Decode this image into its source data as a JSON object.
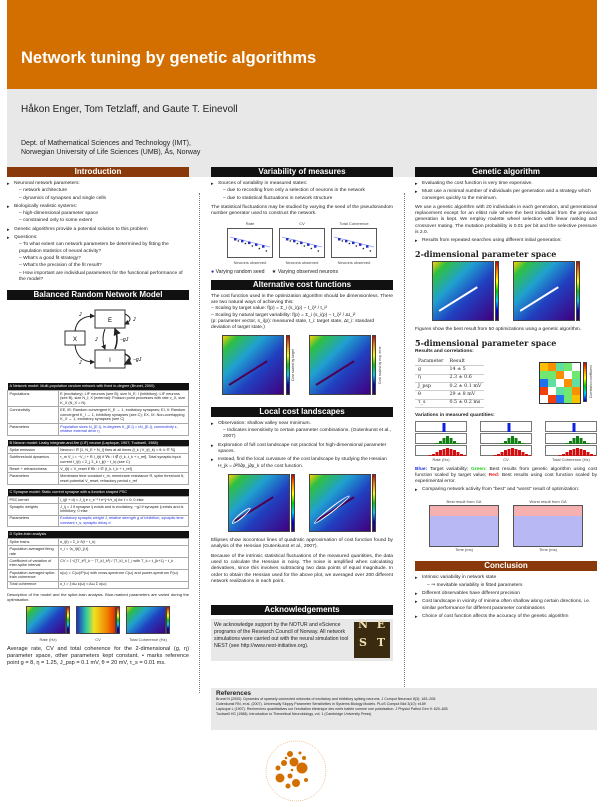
{
  "header": {
    "title": "Network tuning by genetic algorithms",
    "authors": "Håkon Enger, Tom Tetzlaff, and Gaute T. Einevoll",
    "affiliation_1": "Dept. of Mathematical Sciences and Technology (IMT),",
    "affiliation_2": "Norwegian University of Life Sciences (UMB), Ås, Norway"
  },
  "intro": {
    "title": "Introduction",
    "items": [
      {
        "t": "Neuronal network parameters:",
        "sub": [
          "network architecture",
          "dynamics of synapses and single cells"
        ]
      },
      {
        "t": "Biologically realistic systems:",
        "sub": [
          "high-dimensional parameter space",
          "constrained only to some extent"
        ]
      },
      {
        "t": "Genetic algorithms provide a potential solution to this problem",
        "sub": []
      },
      {
        "t": "Questions:",
        "sub": [
          "To what extent can network parameters be determined by fitting the population statistics of neural activity?",
          "What's a good fit strategy?",
          "What's the precision of the fit result?",
          "How important are individual parameters for the functional performance of the model?"
        ]
      }
    ]
  },
  "brn": {
    "title": "Balanced Random Network Model",
    "nodes": [
      "E",
      "X",
      "I"
    ],
    "edges": [
      "J",
      "J",
      "J",
      "−gJ",
      "J",
      "−gJ"
    ],
    "tables": [
      {
        "head": "A   Network model: Multi-population random network with fixed in-degree (Brunel, 2000)",
        "rows": [
          [
            "Populations",
            "E (excitatory): LIF neurons (see B), size N_E; I (inhibitory): LIF neurons (see B), size N_I; X (external): Poisson point processes with rate ν_X, size K_X (N_X = N)"
          ],
          [
            "Connectivity",
            "EE, IE: Random convergent K_E → 1, excitatory synapses; EI, II: Random convergent K_I → 1, inhibitory synapses (see C); EX, IX: Non-overlapping K_X → 1, excitatory synapses (see C)"
          ],
          [
            "Parameters",
            "Population sizes N_{E,I}, in-degrees K_{E,I} = εN_{E,I}, connectivity ε, relative external drive η"
          ]
        ]
      },
      {
        "head": "B   Neuron model: Leaky integrate-and-fire (LIF) neuron (Lapicque, 1907; Tuckwell, 1988)",
        "rows": [
          [
            "Spike emission",
            "Neuron i ∈ [1, N_E + N_I] fires at all times {t_k | V_i(t_k) = θ, k ∈ ℕ}"
          ],
          [
            "Subthreshold dynamics",
            "τ_m V̇_i = −V_i + R I_i(t)  if ∀k : t ∉ (t_k, t_k + τ_ref]. Total synaptic input current I_i(t) = Σ_j Σ_k i_ij(t − t_k) (see C)"
          ],
          [
            "Reset + refractoriness",
            "V_i(t) = V_reset  if ∀k : t ∈ (t_k, t_k + τ_ref]"
          ],
          [
            "Parameters",
            "Membrane time constant τ_m, membrane resistance R, spike threshold θ, reset potential V_reset, refractory period τ_ref"
          ]
        ]
      },
      {
        "head": "C   Synapse model: Static current synapse with α-function shaped PSC",
        "rows": [
          [
            "PSC kernel",
            "i_ij(t + d) = J_ij e τ_s⁻¹ t e^{−t/τ_s} for t > 0; 0 else"
          ],
          [
            "Synaptic weights",
            "J_ij = J if synapse ij exists and is excitatory; −gJ if synapse ij exists and is inhibitory; 0 else"
          ],
          [
            "Parameters",
            "Excitatory synaptic weight J, relative strength g of inhibition, synaptic time constant τ_s, synaptic delay d"
          ]
        ]
      },
      {
        "head": "D   Spike-train analysis",
        "rows": [
          [
            "Spike trains",
            "s_i(t) = Σ_k δ(t − t_k)"
          ],
          [
            "Population averaged firing rate",
            "ν_i = ⟨s_i(t)⟩_{i,t}"
          ],
          [
            "Coefficient of variation of inter-spike interval",
            "CV = ⟨ √(⟨T_k²⟩_k − ⟨T_k⟩_k²) / ⟨T_k⟩_k ⟩_i  with T_k = t_{k+1} − t_k"
          ],
          [
            "Population averaged spike-train coherence",
            "κ(ω) = C(ω)/P(ω) with cross-spectrum C(ω) and power-spectrum P(ω)"
          ],
          [
            "Total coherence",
            "κ_t = ∫ dω κ(ω) ≈ Δω Σ κ(ω)"
          ]
        ]
      }
    ],
    "caption": "Description of the model and the spike-train analysis. Blue-marked parameters are varied during the optimisation.",
    "plot_labels": [
      "Rate (Hz)",
      "CV",
      "Total Coherence (Hz)"
    ],
    "bottom_text": "Average rate, CV and total coherence for the 2-dimensional (g, η) parameter space, other parameters kept constant. • marks reference point g = 8, η = 1.25, J_psp = 0.1 mV, θ = 20 mV, τ_s = 0.01 ms."
  },
  "variability": {
    "title": "Variability of measures",
    "items": [
      {
        "t": "Sources of variability in measured states:",
        "sub": [
          "due to recording from only a selection of neurons in the network",
          "due to statistical fluctuations in network structure"
        ]
      }
    ],
    "para": "The statistical fluctuations may be studied by varying the seed of the pseudorandom number generator used to construct the network.",
    "plots": [
      "Rate",
      "CV",
      "Total Coherence"
    ],
    "xlabel": "Neurons observed",
    "legend_seed": "Varying random seed",
    "legend_neurons": "Varying observed neurons"
  },
  "altcost": {
    "title": "Alternative cost functions",
    "para": "The cost function used in the optimization algorithm should be dimensionless. There are two natural ways of achieving this:",
    "items": [
      "Scaling by target value: f(p) = Σ_i (s_i(p) − t_i)² / t_i²",
      "Scaling by natural target variability: f(p) = Σ_i (s_i(p) − t_i)² / Δt_i²"
    ],
    "note": "(p: parameter vector, s_i(p): measured state, t_i: target state, Δt_i: standard deviation of target state.)",
    "cb_labels": [
      "Cost scaled by target",
      "Cost scaled by exp. error"
    ]
  },
  "local": {
    "title": "Local cost landscapes",
    "items": [
      {
        "t": "Observation: shallow valley near minimum.",
        "sub": [
          "Indicates insensitivity to certain parameter combinations. (Gutenkunst et al., 2007)"
        ]
      },
      {
        "t": "Exploration of full cost landscape not practical for high-dimensional parameter spaces.",
        "sub": []
      },
      {
        "t": "Instead, find the local curvature of the cost landscape by studying the Hessian H_jk = ∂²f/∂p_j∂p_k of the cost function.",
        "sub": []
      }
    ],
    "p1": "Ellipses show isocontour lines of quadratic approximation of cost function found by analysis of the Hessian (Gutenkunst et al., 2007).",
    "p2": "Because of the intrinsic statistical fluctuations of the measured quantities, the data used to calculate the Hessian is noisy. The noise is amplified when calculating derivatives, since this involves subtracting two data points of equal magnitude. In order to obtain the Hessian used for the above plot, we averaged over 200 different network realizations in each point."
  },
  "ack": {
    "title": "Acknowledgements",
    "text": "We acknowledge support by the NOTUR and eScience programs of the Research Council of Norway. All network simulations were carried out with the neural simulation tool NEST (see http://www.nest-initiative.org).",
    "logo_letters": [
      "N",
      "E",
      "S",
      "T"
    ]
  },
  "refs": {
    "title": "References",
    "items": [
      "Brunel N (2000). Dynamics of sparsely connected networks of excitatory and inhibitory spiking neurons. J Comput Neurosci 8(3): 183–208",
      "Gutenkunst RN, et al. (2007). Universally Sloppy Parameter Sensitivities in Systems Biology Models. PLoS Comput Biol 3(10): e189",
      "Lapicque L (1907). Recherches quantitatives sur l'excitation électrique des nerfs traitée comme une polarisation. J Physiol Pathol Gen 9: 620–635",
      "Tuckwell HC (1988). Introduction to Theoretical Neurobiology, vol. 1 (Cambridge University Press)"
    ]
  },
  "logo": {
    "text": "NORWEGIAN UNIVERSITY OF LIFE SCIENCES · MDCCCLIX",
    "color": "#d26f00"
  },
  "ga": {
    "title": "Genetic algorithm",
    "items": [
      "Evaluating the cost function is very time expensive.",
      "Must use a minimal number of individuals per generation and a strategy which converges quickly to the minimum."
    ],
    "para": "We use a genetic algorithm with 20 individuals in each generation, and generational replacement except for an elitist rule where the best individual from the previous generation is kept. We employ roulette wheel selection with linear ranking and crossover mating. The mutation probability is 0.01 per bit and the selective pressure is 2.0.",
    "item3": "Results from repeated searches using different initial generation:",
    "h2d": "2-dimensional parameter space",
    "fig_text": "Figures show the best result from 50 optimizations using a genetic algorithm.",
    "h5d": "5-dimensional parameter space",
    "results_label": "Results and correlations:",
    "table_head": [
      "Parameter",
      "Result"
    ],
    "table": [
      [
        "g",
        "14 ± 5"
      ],
      [
        "η",
        "2.3 ± 0.6"
      ],
      [
        "J_psp",
        "0.2 ± 0.1 mV"
      ],
      [
        "θ",
        "29 ± 8 mV"
      ],
      [
        "τ_s",
        "0.5 ± 0.2 ms"
      ]
    ],
    "corr_axis": [
      "τ_s",
      "θ",
      "J",
      "η",
      "g"
    ],
    "corr_label": "Correlation coefficient",
    "corr": [
      [
        "#f8c000",
        "#f89000",
        "#60e0a0",
        "#70e870",
        "#ffffff"
      ],
      [
        "#70e870",
        "#70e870",
        "#f89000",
        "#ffffff",
        "#70e870"
      ],
      [
        "#2070f0",
        "#60e0a0",
        "#ffffff",
        "#f89000",
        "#60e0a0"
      ],
      [
        "#f04010",
        "#ffffff",
        "#60e0a0",
        "#70e870",
        "#f89000"
      ],
      [
        "#ffffff",
        "#f04010",
        "#2070f0",
        "#70e870",
        "#f8c000"
      ]
    ],
    "var_label": "Variations in measured quantities:",
    "hist_x": [
      "Rate (Hz)",
      "CV",
      "Total Coherence (Hz)"
    ],
    "legend_blue": "Blue:",
    "legend_blue_t": "Target variability;",
    "legend_green": "Green:",
    "legend_green_t": "Best results from genetic algorithm using cost function scaled by target value;",
    "legend_red": "Red:",
    "legend_red_t": "Best results using cost function scaled by experimental error.",
    "item4": "Comparing network activity from “best” and “worst” result of optimization:",
    "raster_titles": [
      "Best result from GA",
      "Worst result from GA"
    ],
    "raster_x": "Time (ms)",
    "raster_y": "Neuron"
  },
  "conclusion": {
    "title": "Conclusion",
    "items": [
      {
        "t": "Intrinsic variability in network state",
        "sub": [
          "⇒ Inevitable variability in fitted parameters"
        ]
      },
      {
        "t": "Different observables have different precision",
        "sub": []
      },
      {
        "t": "Cost landscape in vicinity of minima often shallow along certain directions, i.e. similar performance for different parameter combinations",
        "sub": []
      },
      {
        "t": "Choice of cost function affects the accuracy of the genetic algorithm",
        "sub": []
      }
    ]
  },
  "colors": {
    "header": "#d26f00",
    "intro_bar": "#8a3a0a",
    "section_bar": "#111111",
    "highlight": "#2030e0"
  }
}
